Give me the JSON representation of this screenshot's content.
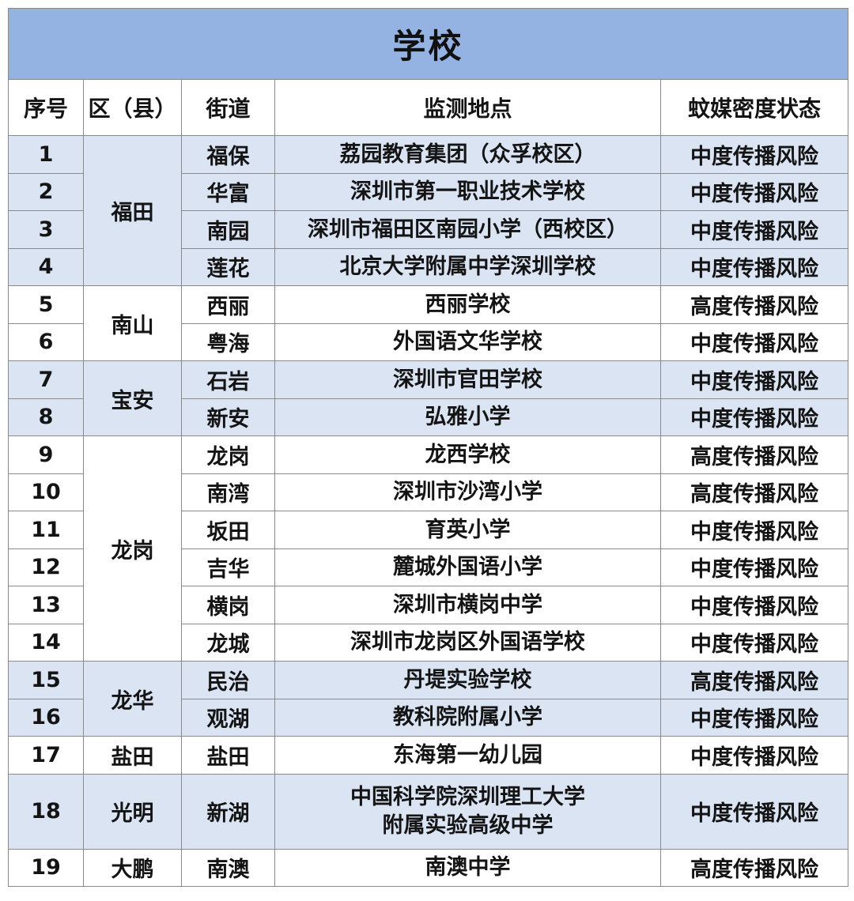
{
  "table": {
    "title": "学校",
    "columns": [
      "序号",
      "区（县）",
      "街道",
      "监测地点",
      "蚊媒密度状态"
    ],
    "colors": {
      "title_bg": "#94b3e2",
      "shaded_row_bg": "#dbe4f3",
      "plain_row_bg": "#ffffff",
      "border": "#8a8a8a",
      "text": "#141414"
    },
    "groups": [
      {
        "district": "福田",
        "shaded": true,
        "rows": [
          {
            "no": "1",
            "street": "福保",
            "site": "荔园教育集团（众孚校区）",
            "status": "中度传播风险"
          },
          {
            "no": "2",
            "street": "华富",
            "site": "深圳市第一职业技术学校",
            "status": "中度传播风险"
          },
          {
            "no": "3",
            "street": "南园",
            "site": "深圳市福田区南园小学（西校区）",
            "status": "中度传播风险"
          },
          {
            "no": "4",
            "street": "莲花",
            "site": "北京大学附属中学深圳学校",
            "status": "中度传播风险"
          }
        ]
      },
      {
        "district": "南山",
        "shaded": false,
        "rows": [
          {
            "no": "5",
            "street": "西丽",
            "site": "西丽学校",
            "status": "高度传播风险"
          },
          {
            "no": "6",
            "street": "粤海",
            "site": "外国语文华学校",
            "status": "中度传播风险"
          }
        ]
      },
      {
        "district": "宝安",
        "shaded": true,
        "rows": [
          {
            "no": "7",
            "street": "石岩",
            "site": "深圳市官田学校",
            "status": "中度传播风险"
          },
          {
            "no": "8",
            "street": "新安",
            "site": "弘雅小学",
            "status": "中度传播风险"
          }
        ]
      },
      {
        "district": "龙岗",
        "shaded": false,
        "rows": [
          {
            "no": "9",
            "street": "龙岗",
            "site": "龙西学校",
            "status": "高度传播风险"
          },
          {
            "no": "10",
            "street": "南湾",
            "site": "深圳市沙湾小学",
            "status": "高度传播风险"
          },
          {
            "no": "11",
            "street": "坂田",
            "site": "育英小学",
            "status": "中度传播风险"
          },
          {
            "no": "12",
            "street": "吉华",
            "site": "麓城外国语小学",
            "status": "中度传播风险"
          },
          {
            "no": "13",
            "street": "横岗",
            "site": "深圳市横岗中学",
            "status": "中度传播风险"
          },
          {
            "no": "14",
            "street": "龙城",
            "site": "深圳市龙岗区外国语学校",
            "status": "中度传播风险"
          }
        ]
      },
      {
        "district": "龙华",
        "shaded": true,
        "rows": [
          {
            "no": "15",
            "street": "民治",
            "site": "丹堤实验学校",
            "status": "高度传播风险"
          },
          {
            "no": "16",
            "street": "观湖",
            "site": "教科院附属小学",
            "status": "中度传播风险"
          }
        ]
      },
      {
        "district": "盐田",
        "shaded": false,
        "rows": [
          {
            "no": "17",
            "street": "盐田",
            "site": "东海第一幼儿园",
            "status": "中度传播风险"
          }
        ]
      },
      {
        "district": "光明",
        "shaded": true,
        "rows": [
          {
            "no": "18",
            "street": "新湖",
            "site": "中国科学院深圳理工大学\n附属实验高级中学",
            "status": "中度传播风险",
            "tall": true
          }
        ]
      },
      {
        "district": "大鹏",
        "shaded": false,
        "rows": [
          {
            "no": "19",
            "street": "南澳",
            "site": "南澳中学",
            "status": "高度传播风险"
          }
        ]
      }
    ]
  }
}
